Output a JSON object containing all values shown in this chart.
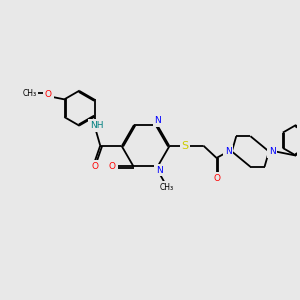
{
  "bg_color": "#e8e8e8",
  "atom_colors": {
    "N": "#0000ff",
    "O": "#ff0000",
    "S": "#cccc00",
    "NH": "#008080",
    "C": "#000000"
  },
  "font_size": 6.5,
  "fig_width": 3.0,
  "fig_height": 3.0,
  "dpi": 100
}
